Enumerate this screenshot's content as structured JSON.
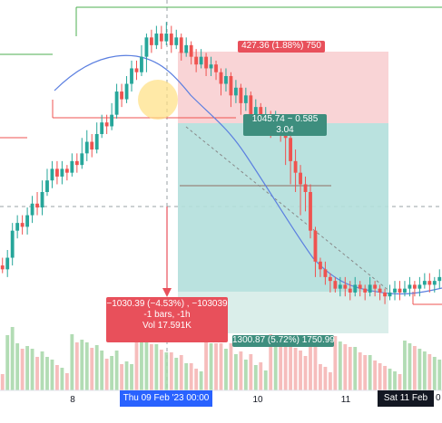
{
  "colors": {
    "bull": "#26a69a",
    "bear": "#ef5350",
    "ma": "#5b7fe0",
    "target_zone": "#b2dfdb",
    "stop_zone": "#f8c9cc",
    "measure": "#e8505b",
    "target_label": "#3e8e7e",
    "stop_label": "#e8505b"
  },
  "position": {
    "stop_label": "427.36 (1.88%) 750",
    "entry_label_line1": "1045.74 ~ 0.585",
    "entry_label_line2": "3.04",
    "target_label": "1300.87 (5.72%) 1750.99"
  },
  "measure": {
    "line1": "−1030.39 (−4.53%) , −103039",
    "line2": "-1 bars, -1h",
    "line3": "Vol 17.591K"
  },
  "x_axis": {
    "ticks": [
      {
        "label": "8"
      },
      {
        "label": "10"
      },
      {
        "label": "11"
      }
    ],
    "cursor_label": "Thu 09 Feb '23   00:00",
    "current_label": "Sat 11 Feb '23",
    "current_suffix": "0"
  },
  "chart_data": {
    "type": "candlestick",
    "candles": [
      [
        0,
        61,
        60,
        63,
        59
      ],
      [
        0,
        60,
        63,
        65,
        58
      ],
      [
        1,
        63,
        70,
        72,
        61
      ],
      [
        1,
        70,
        72,
        74,
        68
      ],
      [
        1,
        72,
        71,
        74,
        69
      ],
      [
        2,
        71,
        74,
        76,
        69
      ],
      [
        2,
        74,
        77,
        79,
        72
      ],
      [
        2,
        77,
        76,
        80,
        74
      ],
      [
        3,
        76,
        80,
        83,
        74
      ],
      [
        3,
        80,
        83,
        86,
        79
      ],
      [
        3,
        83,
        86,
        88,
        81
      ],
      [
        4,
        86,
        84,
        88,
        82
      ],
      [
        4,
        84,
        86,
        88,
        82
      ],
      [
        4,
        86,
        85,
        87,
        83
      ],
      [
        5,
        85,
        88,
        90,
        84
      ],
      [
        5,
        88,
        87,
        90,
        85
      ],
      [
        5,
        87,
        90,
        94,
        86
      ],
      [
        6,
        90,
        93,
        96,
        88
      ],
      [
        6,
        93,
        91,
        95,
        89
      ],
      [
        6,
        91,
        95,
        98,
        90
      ],
      [
        7,
        95,
        98,
        100,
        94
      ],
      [
        7,
        98,
        97,
        100,
        95
      ],
      [
        7,
        97,
        100,
        103,
        96
      ],
      [
        8,
        100,
        106,
        108,
        99
      ],
      [
        8,
        106,
        104,
        108,
        102
      ],
      [
        8,
        104,
        108,
        110,
        103
      ],
      [
        9,
        108,
        112,
        114,
        106
      ],
      [
        9,
        112,
        111,
        114,
        109
      ],
      [
        9,
        111,
        115,
        118,
        110
      ],
      [
        10,
        115,
        120,
        121,
        111
      ],
      [
        10,
        120,
        118,
        122,
        116
      ],
      [
        10,
        118,
        121,
        123,
        117
      ],
      [
        11,
        121,
        119,
        123,
        117
      ],
      [
        11,
        119,
        121,
        124,
        118
      ],
      [
        11,
        121,
        118,
        123,
        116
      ],
      [
        12,
        118,
        120,
        122,
        117
      ],
      [
        12,
        120,
        116,
        121,
        114
      ],
      [
        12,
        116,
        118,
        120,
        115
      ],
      [
        13,
        118,
        115,
        119,
        113
      ],
      [
        13,
        115,
        113,
        117,
        111
      ],
      [
        13,
        113,
        115,
        117,
        112
      ],
      [
        14,
        115,
        112,
        116,
        110
      ],
      [
        14,
        112,
        113,
        115,
        110
      ],
      [
        14,
        113,
        111,
        114,
        109
      ],
      [
        15,
        111,
        108,
        112,
        105
      ],
      [
        15,
        108,
        110,
        112,
        106
      ],
      [
        15,
        110,
        105,
        111,
        102
      ],
      [
        16,
        105,
        107,
        109,
        103
      ],
      [
        16,
        107,
        103,
        108,
        100
      ],
      [
        16,
        103,
        105,
        107,
        101
      ],
      [
        17,
        105,
        100,
        106,
        97
      ],
      [
        17,
        100,
        102,
        104,
        98
      ],
      [
        17,
        102,
        98,
        103,
        95
      ],
      [
        18,
        98,
        100,
        102,
        96
      ],
      [
        18,
        100,
        97,
        101,
        94
      ],
      [
        18,
        97,
        99,
        101,
        95
      ],
      [
        19,
        99,
        96,
        100,
        93
      ],
      [
        19,
        96,
        94,
        97,
        87
      ],
      [
        19,
        94,
        88,
        95,
        82
      ],
      [
        20,
        88,
        85,
        91,
        80
      ],
      [
        20,
        85,
        82,
        87,
        74
      ],
      [
        20,
        82,
        80,
        84,
        75
      ],
      [
        21,
        80,
        70,
        82,
        68
      ],
      [
        21,
        70,
        62,
        71,
        58
      ],
      [
        21,
        62,
        60,
        63,
        58
      ],
      [
        22,
        60,
        58,
        62,
        56
      ],
      [
        22,
        58,
        57,
        59,
        54
      ],
      [
        22,
        57,
        55,
        58,
        54
      ],
      [
        23,
        55,
        56,
        58,
        53
      ],
      [
        23,
        56,
        55,
        58,
        53
      ],
      [
        23,
        55,
        54,
        57,
        52
      ],
      [
        24,
        54,
        56,
        58,
        53
      ],
      [
        24,
        56,
        55,
        57,
        53
      ],
      [
        24,
        55,
        54,
        56,
        52
      ],
      [
        25,
        54,
        56,
        58,
        53
      ],
      [
        25,
        56,
        55,
        57,
        53
      ],
      [
        25,
        55,
        54,
        56,
        52
      ],
      [
        26,
        54,
        53,
        55,
        51
      ],
      [
        26,
        53,
        54,
        56,
        52
      ],
      [
        26,
        54,
        55,
        57,
        52
      ],
      [
        27,
        55,
        54,
        57,
        52
      ],
      [
        27,
        54,
        55,
        57,
        53
      ],
      [
        27,
        55,
        56,
        58,
        53
      ],
      [
        28,
        56,
        55,
        57,
        53
      ],
      [
        28,
        55,
        56,
        58,
        53
      ],
      [
        28,
        56,
        57,
        59,
        55
      ],
      [
        29,
        57,
        56,
        59,
        54
      ],
      [
        29,
        56,
        57,
        58,
        54
      ],
      [
        29,
        57,
        58,
        60,
        55
      ]
    ]
  }
}
